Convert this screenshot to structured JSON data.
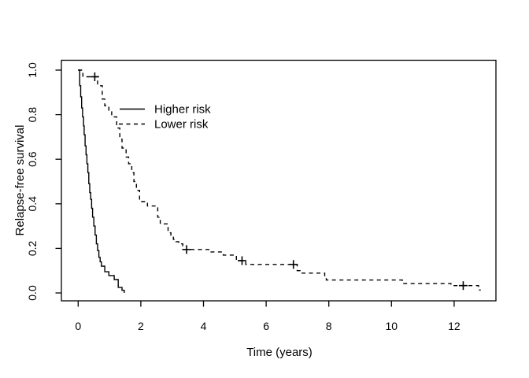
{
  "figure": {
    "background": "#ffffff",
    "foreground": "#000000"
  },
  "chart_data": {
    "type": "line",
    "subtype": "kaplan-meier-step",
    "title": "",
    "xlabel": "Time (years)",
    "ylabel": "Relapse-free survival",
    "xlim": [
      0,
      13.3
    ],
    "ylim": [
      0,
      1.04
    ],
    "grid": false,
    "legend_position": "inside-top-left",
    "x_ticks": [
      0,
      2,
      4,
      6,
      8,
      10,
      12
    ],
    "x_tick_labels": [
      "0",
      "2",
      "4",
      "6",
      "8",
      "10",
      "12"
    ],
    "y_ticks": [
      0.0,
      0.2,
      0.4,
      0.6,
      0.8,
      1.0
    ],
    "y_tick_labels": [
      "0.0",
      "0.2",
      "0.4",
      "0.6",
      "0.8",
      "1.0"
    ],
    "censor_marker": "plus",
    "line_color": "#000000",
    "series": [
      {
        "name": "Higher risk",
        "line_style": "solid",
        "color": "#000000",
        "points": [
          [
            0,
            1.0
          ],
          [
            0.05,
            0.93
          ],
          [
            0.08,
            0.88
          ],
          [
            0.11,
            0.83
          ],
          [
            0.14,
            0.79
          ],
          [
            0.17,
            0.75
          ],
          [
            0.19,
            0.71
          ],
          [
            0.22,
            0.66
          ],
          [
            0.25,
            0.62
          ],
          [
            0.28,
            0.58
          ],
          [
            0.31,
            0.54
          ],
          [
            0.34,
            0.49
          ],
          [
            0.37,
            0.45
          ],
          [
            0.4,
            0.42
          ],
          [
            0.43,
            0.38
          ],
          [
            0.46,
            0.34
          ],
          [
            0.5,
            0.3
          ],
          [
            0.54,
            0.26
          ],
          [
            0.58,
            0.22
          ],
          [
            0.62,
            0.19
          ],
          [
            0.66,
            0.16
          ],
          [
            0.7,
            0.14
          ],
          [
            0.74,
            0.12
          ],
          [
            0.85,
            0.095
          ],
          [
            0.98,
            0.078
          ],
          [
            1.15,
            0.06
          ],
          [
            1.28,
            0.025
          ],
          [
            1.4,
            0.012
          ],
          [
            1.47,
            0.0
          ]
        ],
        "censored": []
      },
      {
        "name": "Lower risk",
        "line_style": "dashed",
        "color": "#000000",
        "points": [
          [
            0,
            1.0
          ],
          [
            0.15,
            0.97
          ],
          [
            0.62,
            0.93
          ],
          [
            0.77,
            0.87
          ],
          [
            0.85,
            0.84
          ],
          [
            0.98,
            0.82
          ],
          [
            1.07,
            0.79
          ],
          [
            1.23,
            0.74
          ],
          [
            1.33,
            0.69
          ],
          [
            1.4,
            0.65
          ],
          [
            1.53,
            0.61
          ],
          [
            1.61,
            0.58
          ],
          [
            1.71,
            0.54
          ],
          [
            1.78,
            0.5
          ],
          [
            1.86,
            0.46
          ],
          [
            1.96,
            0.41
          ],
          [
            2.21,
            0.39
          ],
          [
            2.54,
            0.34
          ],
          [
            2.62,
            0.31
          ],
          [
            2.87,
            0.27
          ],
          [
            2.96,
            0.25
          ],
          [
            3.04,
            0.24
          ],
          [
            3.12,
            0.23
          ],
          [
            3.21,
            0.22
          ],
          [
            3.34,
            0.195
          ],
          [
            4.17,
            0.184
          ],
          [
            4.63,
            0.17
          ],
          [
            5.05,
            0.145
          ],
          [
            5.35,
            0.128
          ],
          [
            6.99,
            0.1
          ],
          [
            7.08,
            0.089
          ],
          [
            7.87,
            0.072
          ],
          [
            7.92,
            0.058
          ],
          [
            10.35,
            0.042
          ],
          [
            11.9,
            0.033
          ],
          [
            12.78,
            0.013
          ],
          [
            12.85,
            0.013
          ]
        ],
        "censored": [
          [
            0.53,
            0.97
          ],
          [
            3.46,
            0.195
          ],
          [
            5.23,
            0.145
          ],
          [
            6.87,
            0.128
          ],
          [
            12.29,
            0.033
          ]
        ]
      }
    ]
  }
}
